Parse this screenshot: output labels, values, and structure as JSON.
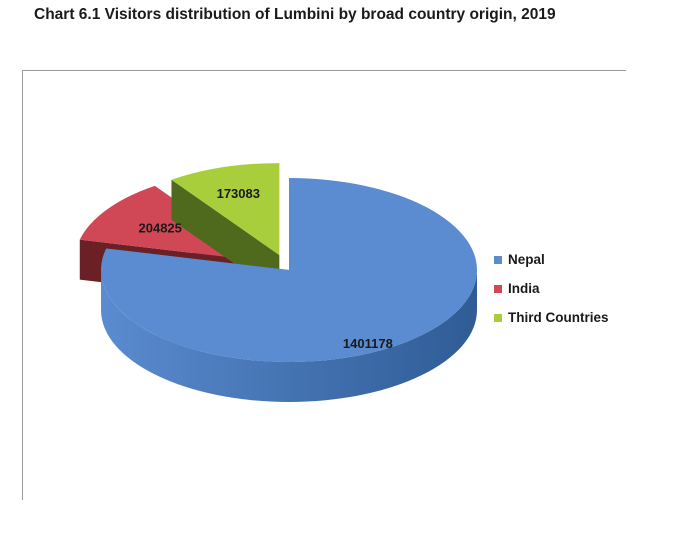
{
  "chart_data": {
    "type": "pie",
    "title": "Chart 6.1 Visitors distribution of Lumbini by broad country origin, 2019",
    "categories": [
      "Nepal",
      "India",
      "Third Countries"
    ],
    "values": [
      1401178,
      204825,
      173083
    ],
    "colors": [
      "#5b8bd0",
      "#d04755",
      "#a9ce3c"
    ],
    "side_colors": [
      "#2f5c95",
      "#6a2025",
      "#4f6a1c"
    ],
    "legend_position": "right",
    "data_labels": [
      "1401178",
      "204825",
      "173083"
    ]
  }
}
